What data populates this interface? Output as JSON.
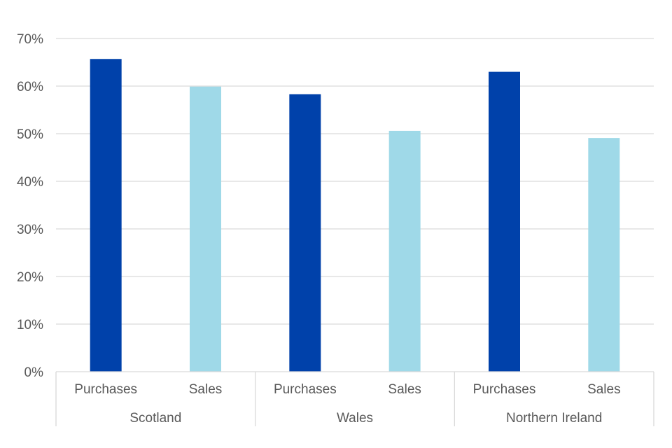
{
  "chart_data": {
    "type": "bar",
    "y_ticks": [
      "0%",
      "10%",
      "20%",
      "30%",
      "40%",
      "50%",
      "60%",
      "70%"
    ],
    "ylim": [
      0,
      70
    ],
    "grid": true,
    "groups": [
      {
        "name": "Scotland",
        "bars": [
          {
            "label": "Purchases",
            "value": 65.7,
            "color": "#0041aa"
          },
          {
            "label": "Sales",
            "value": 59.9,
            "color": "#9fd9e8"
          }
        ]
      },
      {
        "name": "Wales",
        "bars": [
          {
            "label": "Purchases",
            "value": 58.3,
            "color": "#0041aa"
          },
          {
            "label": "Sales",
            "value": 50.6,
            "color": "#9fd9e8"
          }
        ]
      },
      {
        "name": "Northern Ireland",
        "bars": [
          {
            "label": "Purchases",
            "value": 63.0,
            "color": "#0041aa"
          },
          {
            "label": "Sales",
            "value": 49.1,
            "color": "#9fd9e8"
          }
        ]
      }
    ]
  }
}
